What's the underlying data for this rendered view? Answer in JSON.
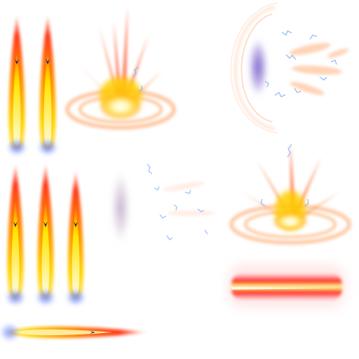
{
  "sprite_sheet": {
    "flames_vertical": [
      {
        "kind": "flame-vertical"
      },
      {
        "kind": "flame-vertical"
      },
      {
        "kind": "flame-vertical"
      },
      {
        "kind": "flame-vertical"
      },
      {
        "kind": "flame-vertical"
      }
    ],
    "flame_horizontal": {
      "kind": "flame-horizontal"
    },
    "explosions": [
      {
        "kind": "explosion-burst"
      },
      {
        "kind": "explosion-burst"
      }
    ],
    "portals": [
      {
        "kind": "portal-ring-with-sparks"
      },
      {
        "kind": "faint-portal-with-sparks"
      }
    ],
    "laser_beam": {
      "kind": "laser-beam"
    }
  },
  "colors": {
    "flame_core": "#fffbe0",
    "flame_yellow": "#ffd400",
    "flame_orange": "#ff8a00",
    "flame_red": "#ff3a1a",
    "flame_tip_blue": "#3b5bff",
    "spark_blue": "#8fb8ff",
    "portal_violet": "#9a86d9",
    "ring_orange": "#ffb07a",
    "beam_red": "#ff2a2a"
  }
}
